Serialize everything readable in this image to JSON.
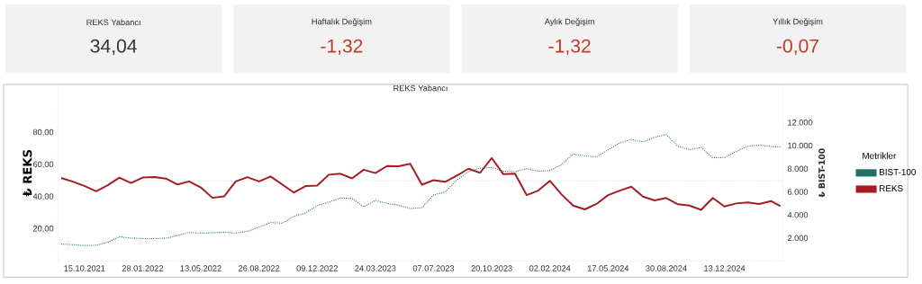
{
  "chart_data": [
    {
      "type": "other",
      "title": "REKS Yabancı",
      "annotations": [
        "34,04"
      ],
      "color": "#333333"
    },
    {
      "type": "other",
      "title": "Haftalık Değişim",
      "annotations": [
        "-1,32"
      ],
      "color": "#c0392b"
    },
    {
      "type": "other",
      "title": "Aylık Değişim",
      "annotations": [
        "-1,32"
      ],
      "color": "#c0392b"
    },
    {
      "type": "other",
      "title": "Yıllık Değişim",
      "annotations": [
        "-0,07"
      ],
      "color": "#c0392b"
    },
    {
      "type": "line",
      "title": "REKS Yabancı",
      "ylabel": "₺ REKS",
      "y2label": "₺ BIST-100",
      "legend_title": "Metrikler",
      "legend": "right",
      "marker": "none",
      "x": [
        "2021-09-03",
        "2021-09-24",
        "2021-10-15",
        "2021-11-05",
        "2021-11-26",
        "2021-12-17",
        "2022-01-07",
        "2022-01-28",
        "2022-02-18",
        "2022-03-11",
        "2022-04-01",
        "2022-04-22",
        "2022-05-13",
        "2022-06-03",
        "2022-06-24",
        "2022-07-15",
        "2022-08-05",
        "2022-08-26",
        "2022-09-16",
        "2022-10-07",
        "2022-10-28",
        "2022-11-18",
        "2022-12-09",
        "2022-12-30",
        "2023-01-20",
        "2023-02-10",
        "2023-03-03",
        "2023-03-24",
        "2023-04-14",
        "2023-05-05",
        "2023-05-26",
        "2023-06-16",
        "2023-07-07",
        "2023-07-28",
        "2023-08-18",
        "2023-09-08",
        "2023-09-29",
        "2023-10-20",
        "2023-11-10",
        "2023-12-01",
        "2023-12-22",
        "2024-01-12",
        "2024-02-02",
        "2024-02-23",
        "2024-03-15",
        "2024-04-05",
        "2024-04-26",
        "2024-05-17",
        "2024-06-07",
        "2024-06-28",
        "2024-07-19",
        "2024-08-09",
        "2024-08-30",
        "2024-09-20",
        "2024-10-11",
        "2024-11-01",
        "2024-11-22",
        "2024-12-13",
        "2025-01-03",
        "2025-01-24",
        "2025-02-14",
        "2025-03-07",
        "2025-03-24"
      ],
      "series": [
        {
          "name": "BIST-100",
          "color": "#1f6f66",
          "axis": "y2",
          "line_style": "dotted",
          "values": [
            1480,
            1430,
            1350,
            1380,
            1640,
            2120,
            1990,
            1960,
            1940,
            1990,
            2220,
            2480,
            2430,
            2450,
            2510,
            2430,
            2580,
            2940,
            3350,
            3280,
            3870,
            4180,
            4800,
            5110,
            5470,
            5420,
            4700,
            5260,
            5000,
            4840,
            4550,
            4630,
            5730,
            5990,
            7020,
            7740,
            8050,
            8100,
            7790,
            7740,
            8000,
            7790,
            7840,
            8360,
            9280,
            9120,
            9020,
            9640,
            10230,
            10540,
            10310,
            10720,
            10950,
            9950,
            9660,
            9840,
            8940,
            8970,
            9480,
            9950,
            10050,
            9920,
            9900
          ]
        },
        {
          "name": "REKS",
          "color": "#a51c24",
          "line_style": "solid",
          "values": [
            51.8,
            49.5,
            46.8,
            43.5,
            47.2,
            52,
            48.6,
            52,
            52.3,
            51.4,
            47.7,
            49.6,
            45.9,
            39.4,
            40.3,
            49.6,
            52.3,
            49.6,
            52.7,
            47.7,
            42.7,
            46.7,
            47,
            53.8,
            54.4,
            51.5,
            56.9,
            54.8,
            59.2,
            59.1,
            60.6,
            47.6,
            50.4,
            49.4,
            53.2,
            57.5,
            55,
            64.2,
            54.1,
            54.4,
            41.1,
            43.9,
            50,
            41.5,
            34.6,
            32.2,
            35.6,
            41.1,
            43.9,
            46.3,
            40.2,
            37.8,
            39.3,
            35.4,
            34.6,
            31.9,
            39.3,
            34,
            35.9,
            36.5,
            35.6,
            37.4,
            34.2
          ]
        }
      ],
      "xlim": [
        "2021-08-28",
        "2025-03-29"
      ],
      "xticks": [
        {
          "value": "2021-10-15",
          "label": "15.10.2021"
        },
        {
          "value": "2022-01-28",
          "label": "28.01.2022"
        },
        {
          "value": "2022-05-13",
          "label": "13.05.2022"
        },
        {
          "value": "2022-08-26",
          "label": "26.08.2022"
        },
        {
          "value": "2022-12-09",
          "label": "09.12.2022"
        },
        {
          "value": "2023-03-24",
          "label": "24.03.2023"
        },
        {
          "value": "2023-07-07",
          "label": "07.07.2023"
        },
        {
          "value": "2023-10-20",
          "label": "20.10.2023"
        },
        {
          "value": "2024-02-02",
          "label": "02.02.2024"
        },
        {
          "value": "2024-05-17",
          "label": "17.05.2024"
        },
        {
          "value": "2024-08-30",
          "label": "30.08.2024"
        },
        {
          "value": "2024-12-13",
          "label": "13.12.2024"
        }
      ],
      "ylim": [
        0,
        110
      ],
      "yticks": [
        {
          "value": 20,
          "label": "20,00"
        },
        {
          "value": 40,
          "label": "40,00"
        },
        {
          "value": 60,
          "label": "60,00"
        },
        {
          "value": 80,
          "label": "80,00"
        }
      ],
      "y2lim": [
        0,
        15300
      ],
      "y2ticks": [
        {
          "value": 2000,
          "label": "2.000"
        },
        {
          "value": 4000,
          "label": "4.000"
        },
        {
          "value": 6000,
          "label": "6.000"
        },
        {
          "value": 8000,
          "label": "8.000"
        },
        {
          "value": 10000,
          "label": "10.000"
        },
        {
          "value": 12000,
          "label": "12.000"
        }
      ],
      "ref_lines": [
        {
          "axis": "y",
          "value": 50,
          "color": "#c8c8c8",
          "line_style": "dotted"
        }
      ]
    }
  ]
}
